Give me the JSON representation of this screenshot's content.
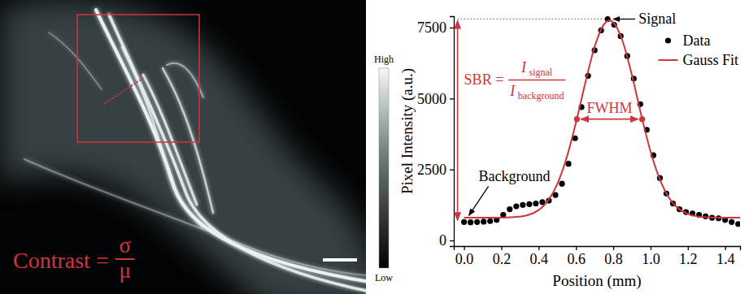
{
  "image_panel": {
    "contrast_formula": {
      "lhs": "Contrast =",
      "numerator": "σ",
      "denominator": "μ"
    },
    "colorbar": {
      "high": "High",
      "low": "Low"
    }
  },
  "chart_data": {
    "type": "scatter",
    "x_label": "Position (mm)",
    "y_label": "Pixel Intensity (a.u.)",
    "xlim": [
      -0.055,
      1.48
    ],
    "ylim": [
      -200,
      7900
    ],
    "xticks": [
      {
        "value": 0,
        "label": "0.0"
      },
      {
        "value": 0.2,
        "label": "0.2"
      },
      {
        "value": 0.4,
        "label": "0.4"
      },
      {
        "value": 0.6,
        "label": "0.6"
      },
      {
        "value": 0.8,
        "label": "0.8"
      },
      {
        "value": 1.0,
        "label": "1.0"
      },
      {
        "value": 1.2,
        "label": "1.2"
      },
      {
        "value": 1.4,
        "label": "1.4"
      }
    ],
    "yticks": [
      0,
      2500,
      5000,
      7500
    ],
    "legend": "upper right",
    "series": [
      {
        "name": "Data",
        "type": "scatter",
        "color": "#000000",
        "marker": "circle",
        "x": [
          0.0,
          0.035,
          0.07,
          0.105,
          0.14,
          0.175,
          0.21,
          0.245,
          0.28,
          0.315,
          0.35,
          0.385,
          0.42,
          0.455,
          0.49,
          0.525,
          0.56,
          0.595,
          0.63,
          0.665,
          0.7,
          0.735,
          0.77,
          0.805,
          0.84,
          0.875,
          0.91,
          0.945,
          0.98,
          1.015,
          1.05,
          1.085,
          1.12,
          1.155,
          1.19,
          1.225,
          1.26,
          1.295,
          1.33,
          1.365,
          1.4,
          1.435,
          1.47
        ],
        "values": [
          650,
          640,
          650,
          660,
          680,
          720,
          900,
          1100,
          1200,
          1250,
          1280,
          1300,
          1350,
          1400,
          1600,
          2000,
          2700,
          3600,
          4700,
          5800,
          6700,
          7400,
          7800,
          7600,
          7200,
          6500,
          5700,
          4800,
          3900,
          3000,
          2200,
          1650,
          1300,
          1100,
          1000,
          950,
          900,
          850,
          800,
          780,
          720,
          650,
          580
        ]
      },
      {
        "name": "Gauss Fit",
        "type": "line",
        "color": "#d0343c",
        "line_style": "solid",
        "x": [
          0,
          0.1,
          0.2,
          0.3,
          0.35,
          0.4,
          0.45,
          0.5,
          0.55,
          0.6,
          0.65,
          0.7,
          0.75,
          0.78,
          0.8,
          0.85,
          0.9,
          0.95,
          1.0,
          1.05,
          1.1,
          1.15,
          1.2,
          1.25,
          1.3,
          1.4,
          1.48
        ],
        "values": [
          800,
          800,
          804,
          839,
          908,
          1069,
          1398,
          1988,
          2913,
          4150,
          5547,
          6819,
          7611,
          7750,
          7688,
          7027,
          5825,
          4426,
          3135,
          2148,
          1488,
          1120,
          932,
          848,
          816,
          800,
          800
        ]
      }
    ],
    "annotations": {
      "signal": "Signal",
      "background": "Background",
      "sbr": {
        "lhs": "SBR =",
        "numerator": {
          "main": "I",
          "sub": "signal"
        },
        "denominator": {
          "main": "I",
          "sub": "background"
        }
      },
      "fwhm": {
        "label": "FWHM",
        "x": [
          0.605,
          0.955
        ],
        "y": 4275
      }
    }
  }
}
